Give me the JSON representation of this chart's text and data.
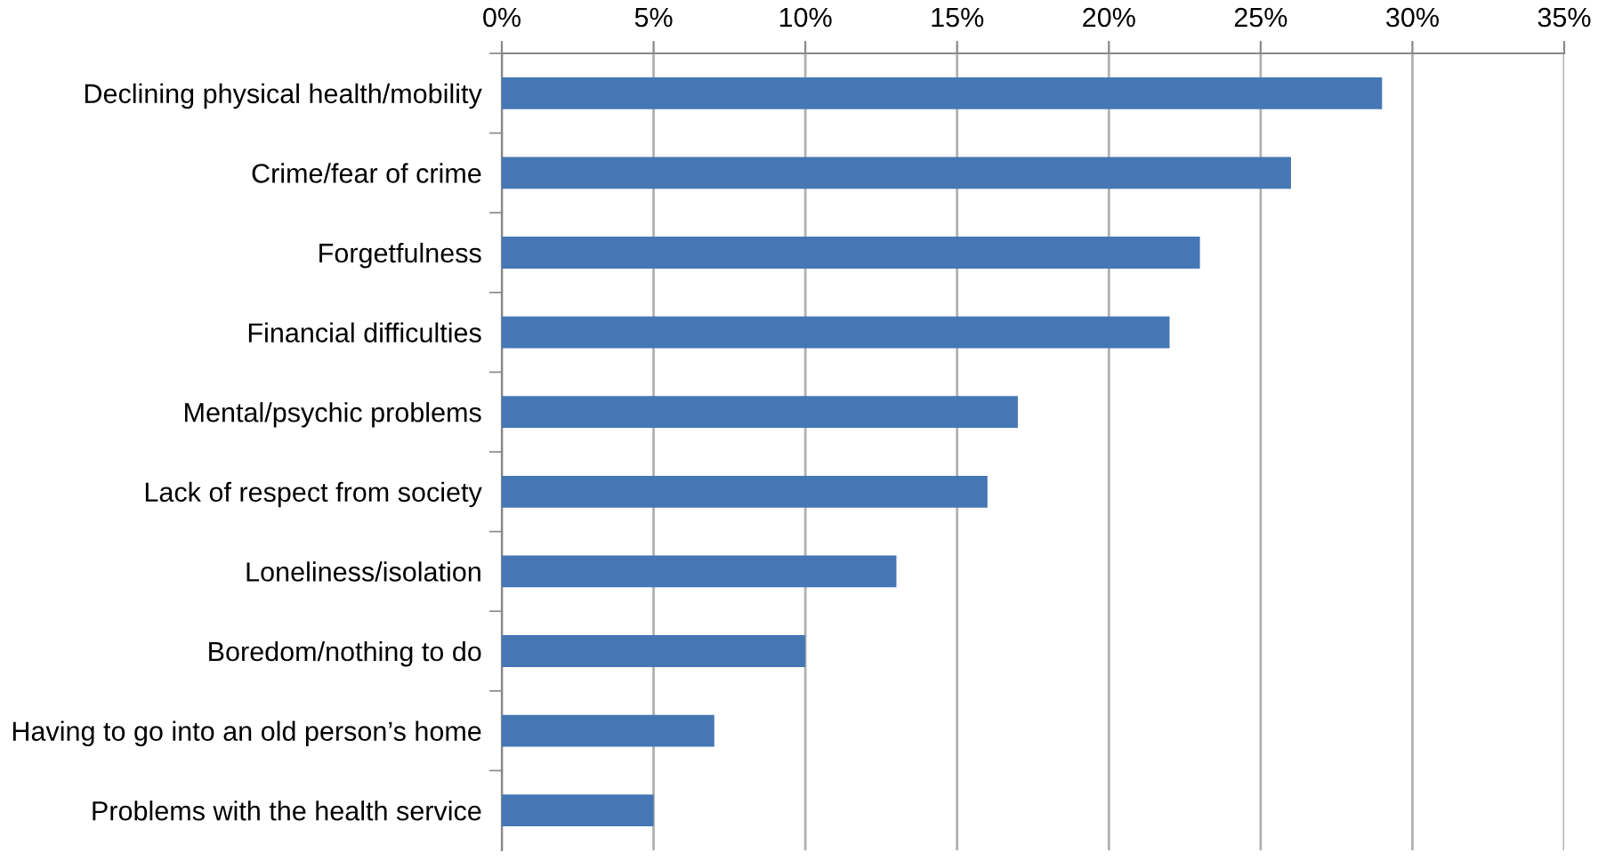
{
  "chart_data": {
    "type": "bar",
    "orientation": "horizontal",
    "categories": [
      "Declining physical health/mobility",
      "Crime/fear of crime",
      "Forgetfulness",
      "Financial difficulties",
      "Mental/psychic problems",
      "Lack of respect from society",
      "Loneliness/isolation",
      "Boredom/nothing to do",
      "Having to go into an old person’s home",
      "Problems with the health service"
    ],
    "values": [
      29,
      26,
      23,
      22,
      17,
      16,
      13,
      10,
      7,
      5
    ],
    "color": "#4677b5",
    "xlim": [
      0,
      35
    ],
    "xticks": [
      {
        "value": 0,
        "label": "0%"
      },
      {
        "value": 5,
        "label": "5%"
      },
      {
        "value": 10,
        "label": "10%"
      },
      {
        "value": 15,
        "label": "15%"
      },
      {
        "value": 20,
        "label": "20%"
      },
      {
        "value": 25,
        "label": "25%"
      },
      {
        "value": 30,
        "label": "30%"
      },
      {
        "value": 35,
        "label": "35%"
      }
    ],
    "grid": "x"
  }
}
